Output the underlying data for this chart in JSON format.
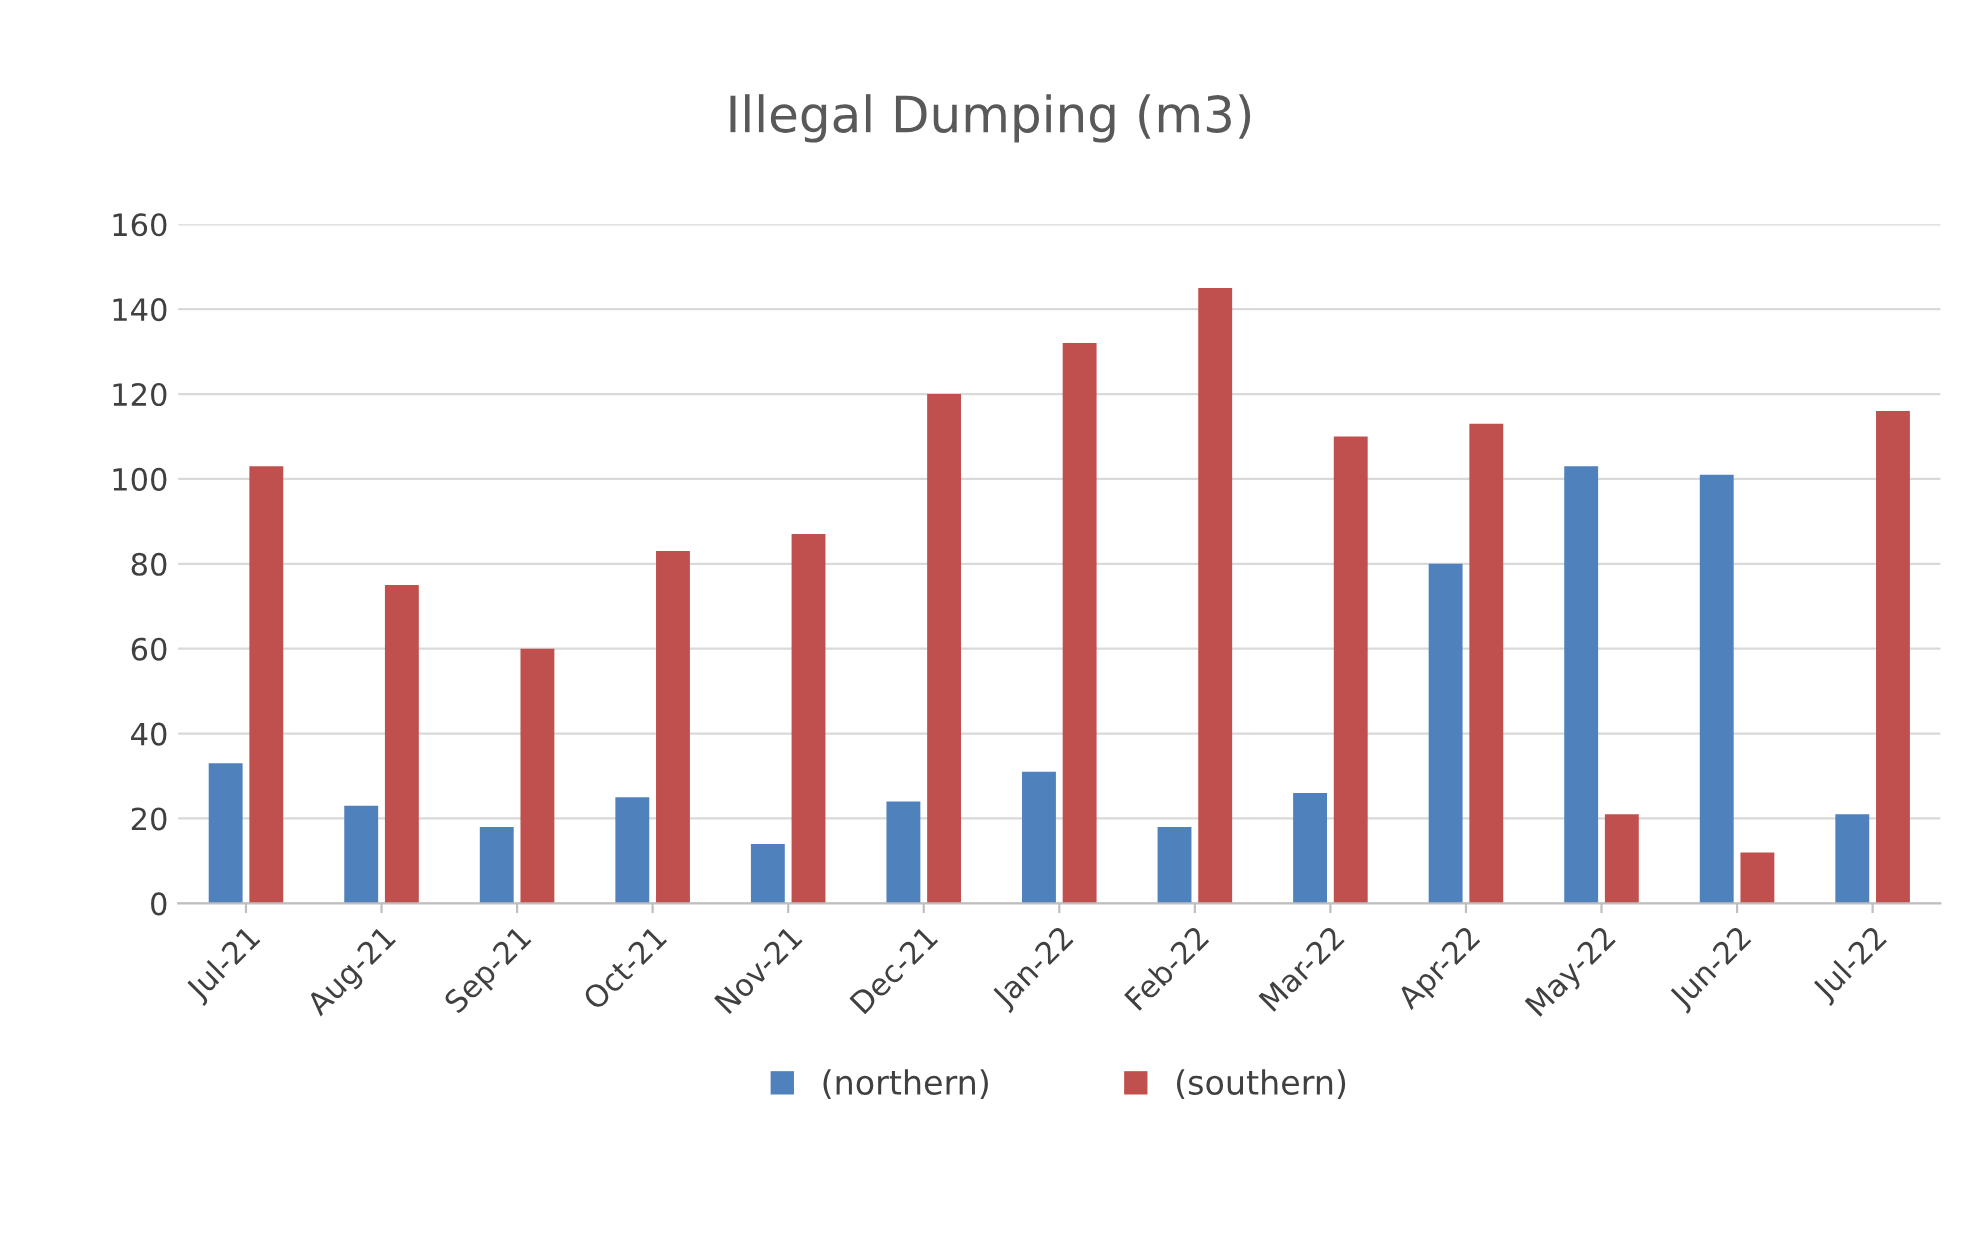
{
  "chart_data": {
    "type": "bar",
    "title": "Illegal Dumping (m3)",
    "categories": [
      "Jul-21",
      "Aug-21",
      "Sep-21",
      "Oct-21",
      "Nov-21",
      "Dec-21",
      "Jan-22",
      "Feb-22",
      "Mar-22",
      "Apr-22",
      "May-22",
      "Jun-22",
      "Jul-22"
    ],
    "series": [
      {
        "name": "(northern)",
        "color": "#4f81bd",
        "values": [
          33,
          23,
          18,
          25,
          14,
          24,
          31,
          18,
          26,
          80,
          103,
          101,
          21
        ]
      },
      {
        "name": "(southern)",
        "color": "#c0504d",
        "values": [
          103,
          75,
          60,
          83,
          87,
          120,
          132,
          145,
          110,
          113,
          21,
          12,
          116
        ]
      }
    ],
    "ylim": [
      0,
      160
    ],
    "yticks": [
      0,
      20,
      40,
      60,
      80,
      100,
      120,
      140,
      160
    ],
    "grid": "y",
    "legend": "bottom"
  }
}
